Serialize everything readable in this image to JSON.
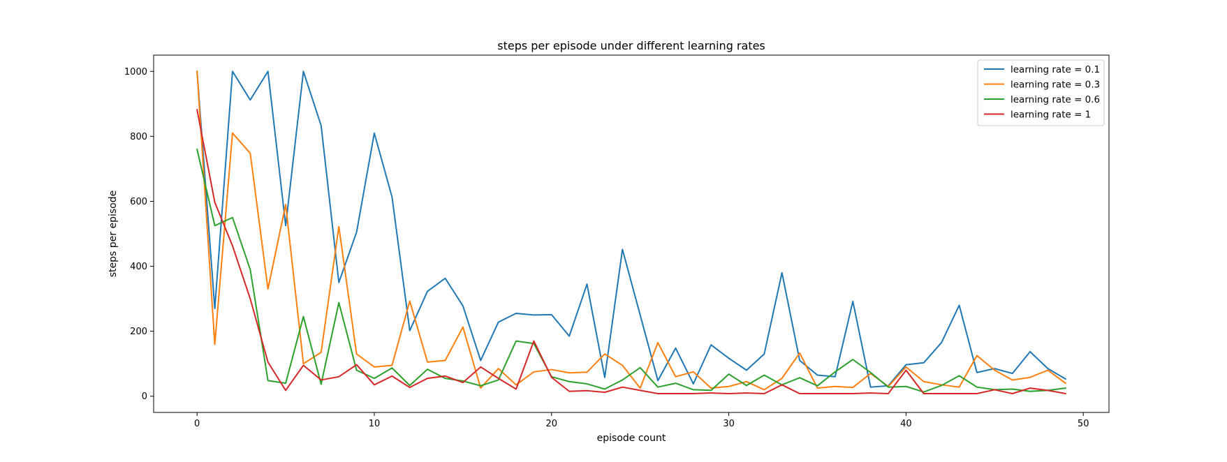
{
  "chart_data": {
    "type": "line",
    "title": "steps per episode under different learning rates",
    "xlabel": "episode count",
    "ylabel": "steps per episode",
    "xlim": [
      -2.45,
      51.45
    ],
    "ylim": [
      -50,
      1050
    ],
    "x_ticks": [
      0,
      10,
      20,
      30,
      40,
      50
    ],
    "y_ticks": [
      0,
      200,
      400,
      600,
      800,
      1000
    ],
    "grid": false,
    "legend_position": "top-right",
    "x": [
      0,
      1,
      2,
      3,
      4,
      5,
      6,
      7,
      8,
      9,
      10,
      11,
      12,
      13,
      14,
      15,
      16,
      17,
      18,
      19,
      20,
      21,
      22,
      23,
      24,
      25,
      26,
      27,
      28,
      29,
      30,
      31,
      32,
      33,
      34,
      35,
      36,
      37,
      38,
      39,
      40,
      41,
      42,
      43,
      44,
      45,
      46,
      47,
      48,
      49
    ],
    "series": [
      {
        "name": "learning rate = 0.1",
        "color": "#1f77b4",
        "values": [
          1000,
          270,
          1000,
          912,
          1000,
          525,
          1000,
          833,
          350,
          505,
          810,
          613,
          202,
          323,
          363,
          278,
          110,
          228,
          255,
          250,
          251,
          185,
          345,
          58,
          452,
          250,
          48,
          148,
          38,
          158,
          117,
          80,
          130,
          380,
          110,
          65,
          60,
          292,
          28,
          32,
          97,
          103,
          165,
          280,
          73,
          85,
          70,
          137,
          85,
          53
        ]
      },
      {
        "name": "learning rate = 0.3",
        "color": "#ff7f0e",
        "values": [
          1000,
          160,
          810,
          748,
          330,
          590,
          100,
          135,
          522,
          130,
          90,
          95,
          293,
          105,
          110,
          213,
          25,
          85,
          35,
          75,
          82,
          72,
          74,
          130,
          95,
          25,
          165,
          60,
          75,
          25,
          30,
          45,
          20,
          55,
          133,
          25,
          30,
          27,
          70,
          30,
          90,
          45,
          35,
          28,
          125,
          80,
          50,
          58,
          80,
          40
        ]
      },
      {
        "name": "learning rate = 0.6",
        "color": "#2ca02c",
        "values": [
          760,
          525,
          550,
          390,
          48,
          40,
          245,
          37,
          288,
          80,
          55,
          87,
          33,
          83,
          55,
          47,
          32,
          50,
          170,
          162,
          60,
          45,
          38,
          22,
          50,
          88,
          28,
          40,
          20,
          18,
          68,
          33,
          65,
          35,
          57,
          32,
          75,
          113,
          73,
          28,
          30,
          13,
          33,
          63,
          28,
          20,
          22,
          15,
          18,
          25
        ]
      },
      {
        "name": "learning rate = 1",
        "color": "#d62728",
        "values": [
          882,
          597,
          463,
          300,
          105,
          18,
          95,
          50,
          60,
          97,
          35,
          62,
          27,
          55,
          62,
          42,
          90,
          55,
          22,
          170,
          58,
          15,
          17,
          12,
          28,
          18,
          8,
          8,
          8,
          10,
          8,
          10,
          8,
          35,
          8,
          8,
          8,
          8,
          10,
          8,
          80,
          8,
          8,
          8,
          8,
          20,
          8,
          25,
          18,
          8
        ]
      }
    ]
  }
}
